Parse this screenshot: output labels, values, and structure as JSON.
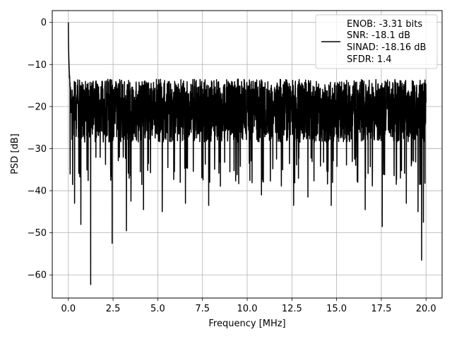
{
  "chart_data": {
    "type": "line",
    "xlabel": "Frequency [MHz]",
    "ylabel": "PSD [dB]",
    "xlim": [
      -0.9,
      20.9
    ],
    "ylim": [
      -65.5,
      2.8
    ],
    "xticks": [
      0.0,
      2.5,
      5.0,
      7.5,
      10.0,
      12.5,
      15.0,
      17.5,
      20.0
    ],
    "xtick_labels": [
      "0.0",
      "2.5",
      "5.0",
      "7.5",
      "10.0",
      "12.5",
      "15.0",
      "17.5",
      "20.0"
    ],
    "yticks": [
      0,
      -10,
      -20,
      -30,
      -40,
      -50,
      -60
    ],
    "ytick_labels": [
      "0",
      "−10",
      "−20",
      "−30",
      "−40",
      "−50",
      "−60"
    ],
    "grid": true,
    "line_color": "#000000",
    "grid_color": "#b0b0b0",
    "legend": {
      "placement": "upper right",
      "entries": [
        "ENOB: -3.31 bits",
        "SNR: -18.1 dB",
        "SINAD: -18.16 dB",
        "SFDR: 1.4"
      ]
    },
    "series": [
      {
        "noise_floor_db": -21,
        "upper_envelope_db": -10,
        "peak": {
          "x": 0.0,
          "y": 0.0
        },
        "deep_nulls": [
          {
            "x": 0.1,
            "y": -36
          },
          {
            "x": 0.35,
            "y": -43
          },
          {
            "x": 0.7,
            "y": -48
          },
          {
            "x": 1.25,
            "y": -62.3
          },
          {
            "x": 2.45,
            "y": -52.5
          },
          {
            "x": 3.25,
            "y": -49.5
          },
          {
            "x": 3.5,
            "y": -42.5
          },
          {
            "x": 4.2,
            "y": -44.5
          },
          {
            "x": 5.25,
            "y": -45
          },
          {
            "x": 6.55,
            "y": -43
          },
          {
            "x": 7.85,
            "y": -43.5
          },
          {
            "x": 10.8,
            "y": -41
          },
          {
            "x": 12.6,
            "y": -43.5
          },
          {
            "x": 13.4,
            "y": -41.5
          },
          {
            "x": 14.7,
            "y": -43.5
          },
          {
            "x": 16.6,
            "y": -44.5
          },
          {
            "x": 17.55,
            "y": -48.5
          },
          {
            "x": 18.9,
            "y": -43
          },
          {
            "x": 19.55,
            "y": -45
          },
          {
            "x": 19.85,
            "y": -47.5
          },
          {
            "x": 19.75,
            "y": -56.5
          }
        ]
      }
    ]
  }
}
